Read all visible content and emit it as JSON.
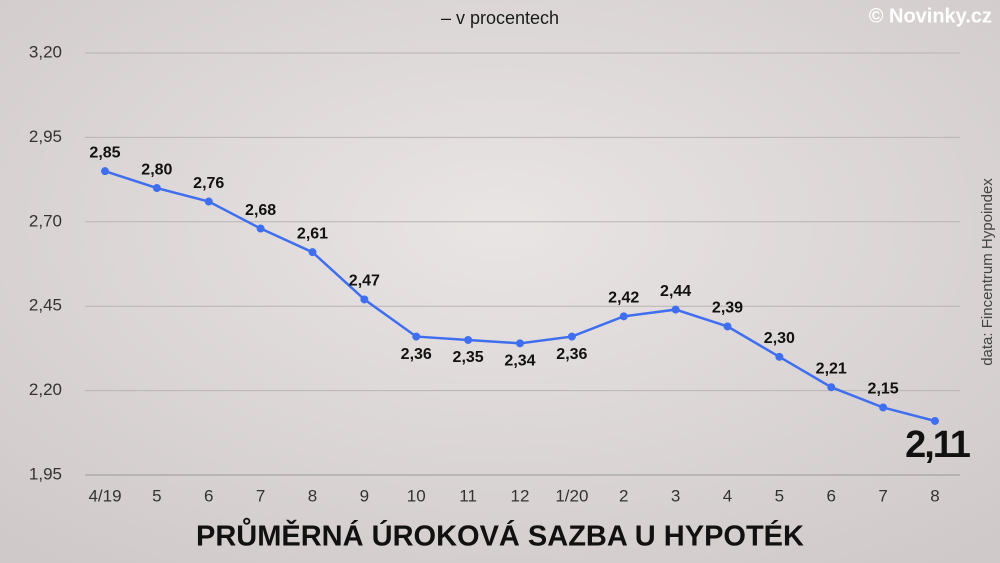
{
  "chart_data": {
    "type": "line",
    "title": "PRŮMĚRNÁ ÚROKOVÁ SAZBA U HYPOTÉK",
    "subtitle": "– v procentech",
    "copyright": "© Novinky.cz",
    "source": "data: Fincentrum Hypoindex",
    "categories": [
      "4/19",
      "5",
      "6",
      "7",
      "8",
      "9",
      "10",
      "11",
      "12",
      "1/20",
      "2",
      "3",
      "4",
      "5",
      "6",
      "7",
      "8"
    ],
    "series": [
      {
        "color": "#3f6ff0",
        "values": [
          2.85,
          2.8,
          2.76,
          2.68,
          2.61,
          2.47,
          2.36,
          2.35,
          2.34,
          2.36,
          2.42,
          2.44,
          2.39,
          2.3,
          2.21,
          2.15,
          2.11
        ],
        "value_labels": [
          "2,85",
          "2,80",
          "2,76",
          "2,68",
          "2,61",
          "2,47",
          "2,36",
          "2,35",
          "2,34",
          "2,36",
          "2,42",
          "2,44",
          "2,39",
          "2,30",
          "2,21",
          "2,15",
          "2,11"
        ]
      }
    ],
    "ylim": [
      1.95,
      3.2
    ],
    "yticks": [
      {
        "value": 1.95,
        "label": "1,95"
      },
      {
        "value": 2.2,
        "label": "2,20"
      },
      {
        "value": 2.45,
        "label": "2,45"
      },
      {
        "value": 2.7,
        "label": "2,70"
      },
      {
        "value": 2.95,
        "label": "2,95"
      },
      {
        "value": 3.2,
        "label": "3,20"
      }
    ],
    "grid": true
  }
}
